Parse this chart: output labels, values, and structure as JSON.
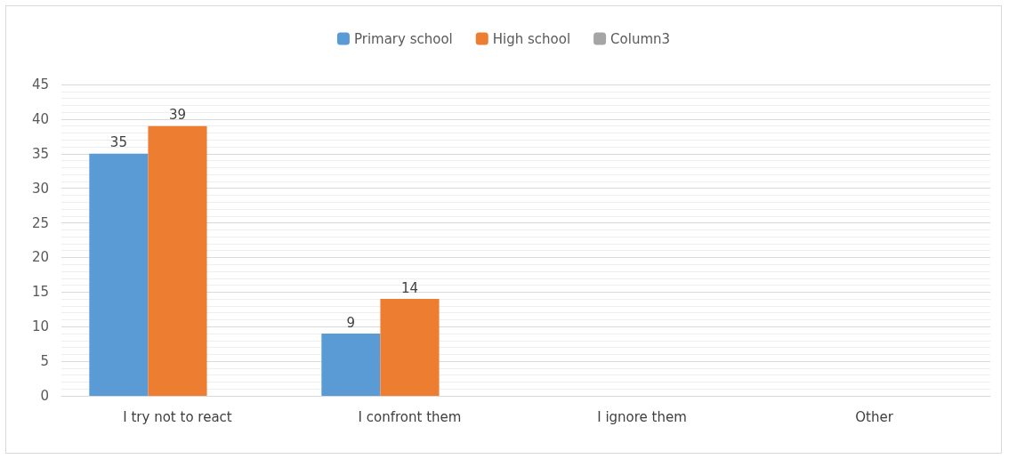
{
  "chart_data": {
    "type": "bar",
    "categories": [
      "I try not to react",
      "I confront them",
      "I ignore them",
      "Other"
    ],
    "series": [
      {
        "name": "Primary school",
        "color": "#5b9bd5",
        "values": [
          35,
          9,
          null,
          null
        ]
      },
      {
        "name": "High school",
        "color": "#ed7d31",
        "values": [
          39,
          14,
          null,
          null
        ]
      },
      {
        "name": "Column3",
        "color": "#a5a5a5",
        "values": [
          null,
          null,
          null,
          null
        ]
      }
    ],
    "ylim": [
      0,
      45
    ],
    "yticks": [
      0,
      5,
      10,
      15,
      20,
      25,
      30,
      35,
      40,
      45
    ],
    "grid": "y",
    "legend": "top",
    "data_labels": true
  }
}
